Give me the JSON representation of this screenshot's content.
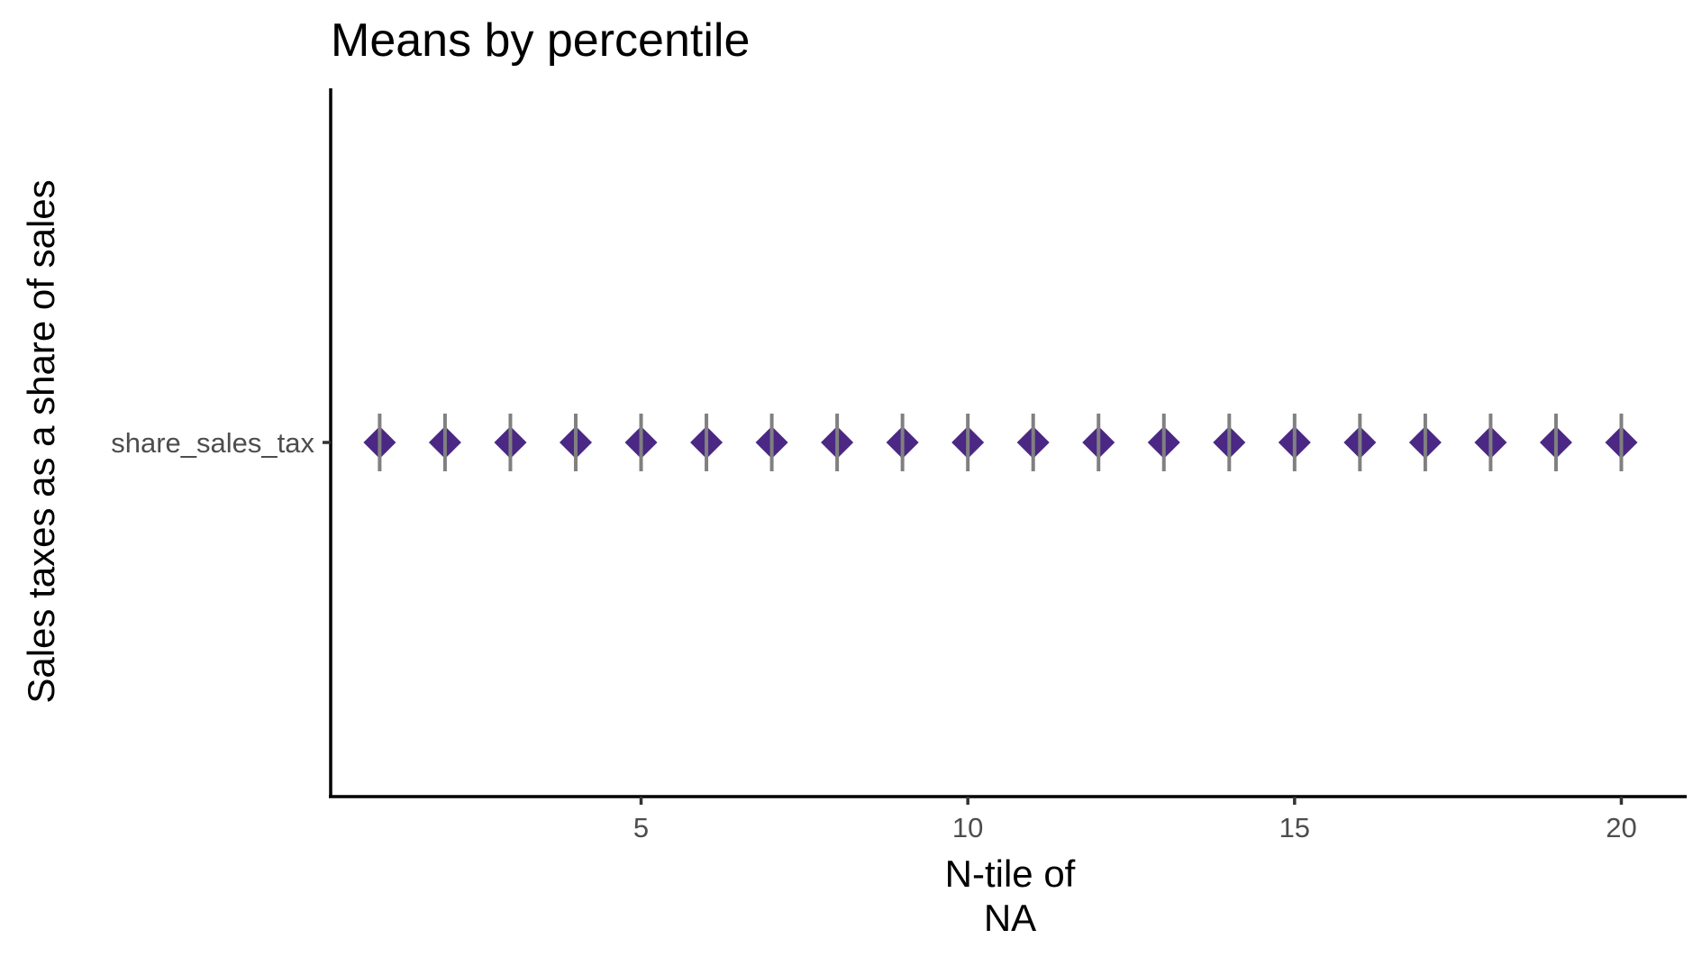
{
  "chart_data": {
    "type": "scatter",
    "title": "Means by percentile",
    "xlabel_lines": [
      "N-tile of",
      "NA"
    ],
    "ylabel": "Sales taxes as a share of sales",
    "x": [
      1,
      2,
      3,
      4,
      5,
      6,
      7,
      8,
      9,
      10,
      11,
      12,
      13,
      14,
      15,
      16,
      17,
      18,
      19,
      20
    ],
    "y_category": "share_sales_tax",
    "y_categories": [
      "share_sales_tax"
    ],
    "x_ticks": [
      5,
      10,
      15,
      20
    ],
    "xlim": [
      0.25,
      21.0
    ],
    "grid": false,
    "legend": "none",
    "marker": "diamond",
    "point_color": "#4b2883",
    "errorbar_color": "#808080"
  }
}
